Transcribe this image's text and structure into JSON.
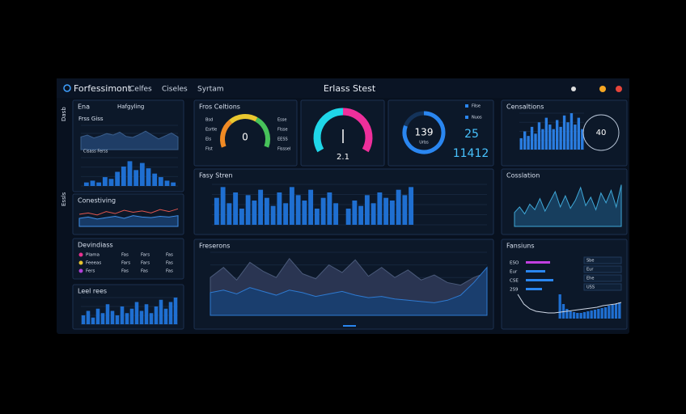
{
  "header": {
    "logo": "Forfessimont",
    "nav": [
      "Celfes",
      "Ciseles",
      "Syrtam"
    ],
    "title": "Erlass Stest"
  },
  "sidebar": [
    "Dasb",
    "Essls"
  ],
  "p1": {
    "title": "Ena",
    "subtitle": "Hafgyling",
    "label": "Frss Giss",
    "caption": "Cisass Ferss",
    "area": [
      26,
      30,
      24,
      28,
      33,
      30,
      36,
      27,
      25,
      31,
      38,
      30,
      22,
      28,
      34,
      26
    ],
    "hist": [
      2,
      3,
      2,
      5,
      4,
      8,
      11,
      14,
      9,
      13,
      10,
      7,
      5,
      3,
      2
    ]
  },
  "p2": {
    "title": "Conestiving",
    "a": [
      18,
      20,
      17,
      22,
      19,
      24,
      21,
      23,
      20,
      25,
      22,
      26
    ],
    "b": [
      12,
      14,
      11,
      13,
      15,
      12,
      16,
      14,
      13,
      15,
      14,
      16
    ]
  },
  "p3": {
    "title": "Devindiass",
    "rows": [
      [
        "Plama",
        "Fas",
        "Fars",
        "Fas"
      ],
      [
        "Feeeas",
        "Fars",
        "Fars",
        "Fas"
      ],
      [
        "Fers",
        "Fas",
        "Fas",
        "Fas"
      ]
    ]
  },
  "p4": {
    "title": "Leel rees",
    "bars": [
      4,
      6,
      3,
      7,
      5,
      9,
      6,
      4,
      8,
      5,
      7,
      10,
      6,
      9,
      5,
      8,
      11,
      7,
      10,
      12
    ]
  },
  "g1": {
    "title": "Fros Celtions",
    "value": "0",
    "left": [
      "Bsd",
      "Esrtle",
      "Els",
      "Flst"
    ],
    "right": [
      "Esse",
      "Flsse",
      "EESS",
      "Fisssel"
    ]
  },
  "g2": {
    "value": "2.1"
  },
  "g3": {
    "value": "139",
    "sub": "Urbs",
    "big": "25",
    "total": "11412",
    "legend": [
      "Filse",
      "Nuos"
    ]
  },
  "r1": {
    "title": "Censaltions",
    "clock": "40",
    "bars": [
      5,
      8,
      6,
      10,
      7,
      12,
      9,
      14,
      11,
      9,
      13,
      10,
      15,
      12,
      16,
      11,
      14,
      9
    ]
  },
  "m2": {
    "title": "Fasy Stren",
    "bars": [
      10,
      14,
      8,
      12,
      6,
      11,
      9,
      13,
      10,
      7,
      12,
      8,
      14,
      11,
      9,
      13,
      6,
      10,
      12,
      8,
      null,
      6,
      9,
      7,
      11,
      8,
      12,
      10,
      9,
      13,
      11,
      14
    ]
  },
  "r2": {
    "title": "Cosslation",
    "line": [
      10,
      14,
      9,
      16,
      12,
      20,
      11,
      18,
      25,
      14,
      22,
      13,
      19,
      28,
      15,
      21,
      12,
      24,
      17,
      26,
      14,
      30
    ]
  },
  "m3": {
    "title": "Freserons",
    "back": [
      30,
      38,
      28,
      42,
      35,
      30,
      45,
      33,
      29,
      40,
      34,
      44,
      31,
      38,
      30,
      36,
      28,
      32,
      26,
      24,
      30,
      34
    ],
    "front": [
      18,
      20,
      17,
      22,
      19,
      16,
      20,
      18,
      15,
      17,
      19,
      16,
      14,
      15,
      13,
      12,
      11,
      10,
      12,
      16,
      26,
      38
    ]
  },
  "r3": {
    "title": "Fansiuns",
    "hbars": [
      30,
      24,
      34,
      20
    ],
    "hbar_labels": [
      "ESO",
      "Eur",
      "CSE",
      "2S9"
    ],
    "list": [
      "Sbe",
      "Eur",
      "Ehe",
      "USS"
    ],
    "decay": [
      30,
      18,
      12,
      9,
      8,
      7,
      7,
      8,
      9,
      10,
      11,
      12,
      13,
      14,
      16,
      17,
      18,
      20
    ]
  }
}
